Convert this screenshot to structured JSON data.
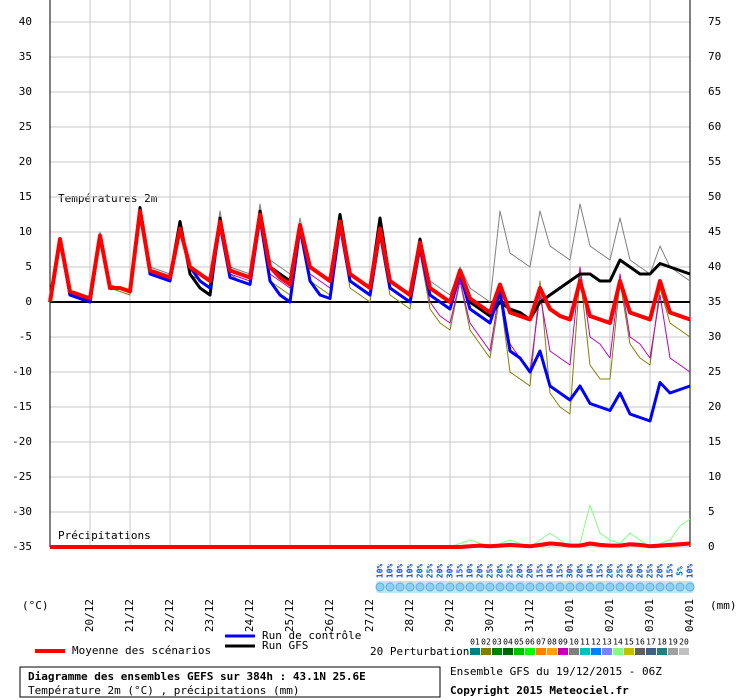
{
  "chart_data": {
    "type": "line",
    "title": "Diagramme des ensembles GEFS sur 384h : 43.1N 25.6E",
    "subtitle": "Température 2m (°C) , précipitations (mm)",
    "run_label": "Ensemble GFS du 19/12/2015 - 06Z",
    "copyright": "Copyright 2015 Meteociel.fr",
    "temp_label": "Températures 2m",
    "precip_label": "Précipitations",
    "y_label": "(°C)",
    "y2_label": "(mm)",
    "perturbations_label": "20 Perturbations",
    "xlim": [
      0,
      384
    ],
    "xticks": [
      {
        "value": 24,
        "label": "20/12"
      },
      {
        "value": 48,
        "label": "21/12"
      },
      {
        "value": 72,
        "label": "22/12"
      },
      {
        "value": 96,
        "label": "23/12"
      },
      {
        "value": 120,
        "label": "24/12"
      },
      {
        "value": 144,
        "label": "25/12"
      },
      {
        "value": 168,
        "label": "26/12"
      },
      {
        "value": 192,
        "label": "27/12"
      },
      {
        "value": 216,
        "label": "28/12"
      },
      {
        "value": 240,
        "label": "29/12"
      },
      {
        "value": 264,
        "label": "30/12"
      },
      {
        "value": 288,
        "label": "31/12"
      },
      {
        "value": 312,
        "label": "01/01"
      },
      {
        "value": 336,
        "label": "02/01"
      },
      {
        "value": 360,
        "label": "03/01"
      },
      {
        "value": 384,
        "label": "04/01"
      }
    ],
    "ylim": [
      -35,
      40
    ],
    "yticks": [
      40,
      35,
      30,
      25,
      20,
      15,
      10,
      5,
      0,
      -5,
      -10,
      -15,
      -20,
      -25,
      -30,
      -35
    ],
    "y2lim": [
      0,
      75
    ],
    "y2ticks": [
      75,
      70,
      65,
      60,
      55,
      50,
      45,
      40,
      35,
      30,
      25,
      20,
      15,
      10,
      5,
      0
    ],
    "grid": true,
    "x": [
      0,
      6,
      12,
      18,
      24,
      30,
      36,
      42,
      48,
      54,
      60,
      66,
      72,
      78,
      84,
      90,
      96,
      102,
      108,
      114,
      120,
      126,
      132,
      138,
      144,
      150,
      156,
      162,
      168,
      174,
      180,
      186,
      192,
      198,
      204,
      210,
      216,
      222,
      228,
      234,
      240,
      246,
      252,
      258,
      264,
      270,
      276,
      282,
      288,
      294,
      300,
      306,
      312,
      318,
      324,
      330,
      336,
      342,
      348,
      354,
      360,
      366,
      372,
      378,
      384
    ],
    "series": [
      {
        "name": "02",
        "color": "#808000",
        "width": 1,
        "values": [
          0,
          9,
          1,
          1,
          0.5,
          9.5,
          2,
          1.5,
          1,
          13,
          4,
          3.5,
          3,
          10,
          4,
          3,
          2,
          11,
          4,
          3,
          2.5,
          12.5,
          3,
          2,
          1,
          10,
          3,
          2,
          1,
          11,
          2,
          1,
          0,
          9,
          1,
          0,
          -1,
          7,
          -1,
          -3,
          -4,
          3,
          -4,
          -6,
          -8,
          1,
          -10,
          -11,
          -12,
          3,
          -13,
          -15,
          -16,
          4,
          -9,
          -11,
          -11,
          3,
          -6,
          -8,
          -9,
          2,
          -3,
          -4,
          -5
        ]
      },
      {
        "name": "09",
        "color": "#c000c0",
        "width": 1,
        "values": [
          0,
          9,
          1.5,
          1,
          0.5,
          9,
          2,
          2,
          1.5,
          12.5,
          4,
          3.5,
          3,
          10,
          5,
          4,
          3,
          11,
          4,
          3.5,
          3,
          12,
          4,
          3,
          2,
          10.5,
          4,
          3,
          2,
          11,
          3,
          2,
          1,
          11,
          3,
          2,
          1,
          7,
          0,
          -2,
          -3,
          3,
          -3,
          -5,
          -7,
          2,
          -6,
          -8,
          -10,
          1,
          -7,
          -8,
          -9,
          5,
          -5,
          -6,
          -8,
          4,
          -5,
          -6,
          -8,
          1,
          -8,
          -9,
          -10
        ]
      },
      {
        "name": "10",
        "color": "#808080",
        "width": 1,
        "values": [
          0,
          9,
          1.5,
          1,
          0.5,
          10,
          2.5,
          2,
          1.5,
          13,
          5,
          4.5,
          4,
          11,
          5,
          4,
          3,
          13,
          5,
          4.5,
          4,
          14,
          6,
          5,
          4,
          12,
          5,
          4,
          3,
          11,
          4,
          3,
          2,
          11,
          3,
          2,
          1,
          9,
          3,
          2,
          1,
          5,
          2,
          1,
          0,
          13,
          7,
          6,
          5,
          13,
          8,
          7,
          6,
          14,
          8,
          7,
          6,
          12,
          6,
          5,
          4,
          8,
          5,
          4,
          3
        ]
      },
      {
        "name": "Run GFS",
        "color": "#000000",
        "width": 3,
        "values": [
          0,
          9,
          1,
          0.5,
          0,
          9.5,
          2,
          2,
          1.5,
          13.5,
          4.5,
          4,
          3.5,
          11.5,
          4,
          2,
          1,
          12,
          4.5,
          4,
          3.5,
          13,
          5,
          4,
          3,
          11,
          5,
          4,
          3,
          12.5,
          4,
          3,
          2,
          12,
          3,
          2,
          1,
          9,
          2,
          1,
          0,
          4.5,
          0,
          -1,
          -2,
          0,
          -1,
          -1.5,
          -2.5,
          0,
          1,
          2,
          3,
          4,
          4,
          3,
          3,
          6,
          5,
          4,
          4,
          5.5,
          5,
          4.5,
          4
        ]
      },
      {
        "name": "Run de contrôle",
        "color": "#0000ff",
        "width": 3,
        "values": [
          0,
          9,
          1,
          0.5,
          0,
          9.5,
          2,
          2,
          1.5,
          13,
          4,
          3.5,
          3,
          10.5,
          5,
          3,
          2,
          11,
          3.5,
          3,
          2.5,
          12,
          3,
          1,
          0,
          10.5,
          3,
          1,
          0.5,
          11,
          3,
          2,
          1,
          10,
          2,
          1,
          0,
          8,
          1,
          0,
          -1,
          4,
          -1,
          -2,
          -3,
          1.5,
          -7,
          -8,
          -10,
          -7,
          -12,
          -13,
          -14,
          -12,
          -14.5,
          -15,
          -15.5,
          -13,
          -16,
          -16.5,
          -17,
          -11.5,
          -13,
          -12.5,
          -12
        ]
      },
      {
        "name": "Moyenne des scénarios",
        "color": "#ff0000",
        "width": 4,
        "values": [
          0,
          9,
          1.5,
          1,
          0.5,
          9.5,
          2,
          2,
          1.5,
          13,
          4.5,
          4,
          3.5,
          10.5,
          5,
          4,
          3,
          11.5,
          4.5,
          4,
          3.5,
          12.5,
          5,
          3.5,
          2.5,
          11,
          5,
          4,
          3,
          11.5,
          4,
          3,
          2,
          10.5,
          3,
          2,
          1,
          8.5,
          2,
          1,
          0,
          4.5,
          0.5,
          -0.5,
          -1.5,
          2.5,
          -1.5,
          -2,
          -2.5,
          2,
          -1,
          -2,
          -2.5,
          3,
          -2,
          -2.5,
          -3,
          3,
          -1.5,
          -2,
          -2.5,
          3,
          -1.5,
          -2,
          -2.5
        ]
      }
    ],
    "precip_series": [
      {
        "color": "#80ff80",
        "width": 1,
        "axis": "y2",
        "values": [
          0,
          0,
          0,
          0,
          0,
          0,
          0,
          0,
          0,
          0,
          0,
          0,
          0,
          0,
          0,
          0,
          0,
          0,
          0,
          0,
          0,
          0,
          0,
          0,
          0,
          0,
          0,
          0,
          0,
          0,
          0,
          0,
          0,
          0,
          0,
          0,
          0,
          0,
          0,
          0,
          0,
          0.5,
          1,
          0.5,
          0,
          0.5,
          1,
          0.5,
          0,
          1,
          2,
          1,
          0,
          0.5,
          6,
          2,
          1,
          0.5,
          2,
          1,
          0,
          0.5,
          1,
          3,
          4
        ]
      },
      {
        "color": "#ff0000",
        "width": 4,
        "axis": "y2",
        "values": [
          0,
          0,
          0,
          0,
          0,
          0,
          0,
          0,
          0,
          0,
          0,
          0,
          0,
          0,
          0,
          0,
          0,
          0,
          0,
          0,
          0,
          0,
          0,
          0,
          0,
          0,
          0,
          0,
          0,
          0,
          0,
          0,
          0,
          0,
          0,
          0,
          0,
          0,
          0,
          0,
          0,
          0,
          0.1,
          0.2,
          0.1,
          0.2,
          0.3,
          0.2,
          0.1,
          0.3,
          0.5,
          0.4,
          0.2,
          0.2,
          0.5,
          0.3,
          0.2,
          0.2,
          0.4,
          0.3,
          0.1,
          0.2,
          0.3,
          0.4,
          0.5
        ]
      }
    ],
    "legend_series": [
      5,
      4,
      3
    ],
    "perturbation_legend": [
      {
        "name": "01",
        "color": "#008080"
      },
      {
        "name": "02",
        "color": "#808000"
      },
      {
        "name": "03",
        "color": "#008000"
      },
      {
        "name": "04",
        "color": "#006400"
      },
      {
        "name": "05",
        "color": "#00c000"
      },
      {
        "name": "06",
        "color": "#00ff00"
      },
      {
        "name": "07",
        "color": "#ff8000"
      },
      {
        "name": "08",
        "color": "#ffa000"
      },
      {
        "name": "09",
        "color": "#c000c0"
      },
      {
        "name": "10",
        "color": "#808080"
      },
      {
        "name": "11",
        "color": "#00c0c0"
      },
      {
        "name": "12",
        "color": "#0080ff"
      },
      {
        "name": "13",
        "color": "#8080ff"
      },
      {
        "name": "14",
        "color": "#80ff80"
      },
      {
        "name": "15",
        "color": "#c0c000"
      },
      {
        "name": "16",
        "color": "#606060"
      },
      {
        "name": "17",
        "color": "#406080"
      },
      {
        "name": "18",
        "color": "#208080"
      },
      {
        "name": "19",
        "color": "#a0a0a0"
      },
      {
        "name": "20",
        "color": "#c0c0c0"
      }
    ],
    "snow_probability": {
      "x": [
        198,
        204,
        210,
        216,
        222,
        228,
        234,
        240,
        246,
        252,
        258,
        264,
        270,
        276,
        282,
        288,
        294,
        300,
        306,
        312,
        318,
        324,
        330,
        336,
        342,
        348,
        354,
        360,
        366,
        372,
        378,
        384
      ],
      "values": [
        10,
        10,
        10,
        10,
        20,
        25,
        20,
        30,
        15,
        10,
        20,
        25,
        20,
        25,
        20,
        20,
        15,
        10,
        15,
        30,
        20,
        10,
        15,
        20,
        25,
        20,
        20,
        25,
        20,
        15,
        5,
        10
      ],
      "value_labels": [
        "10%",
        "10%",
        "10%",
        "10%",
        "20%",
        "25%",
        "20%",
        "30%",
        "15%",
        "10%",
        "20%",
        "25%",
        "20%",
        "25%",
        "20%",
        "20%",
        "15%",
        "10%",
        "15%",
        "30%",
        "20%",
        "10%",
        "15%",
        "20%",
        "25%",
        "20%",
        "20%",
        "25%",
        "20%",
        "15%",
        "5%",
        "10%"
      ]
    }
  }
}
